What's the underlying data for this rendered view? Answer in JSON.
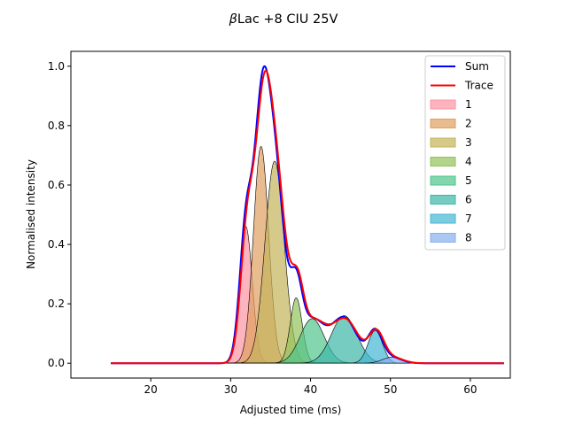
{
  "chart_data": {
    "type": "area",
    "title_prefix": "β",
    "title": "Lac +8 CIU 25V",
    "xlabel": "Adjusted time (ms)",
    "ylabel": "Normalised intensity",
    "xlim": [
      10,
      65
    ],
    "ylim": [
      -0.05,
      1.05
    ],
    "xticks": [
      20,
      30,
      40,
      50,
      60
    ],
    "yticks": [
      0.0,
      0.2,
      0.4,
      0.6,
      0.8,
      1.0
    ],
    "x_range": [
      15,
      64.2
    ],
    "grid": false,
    "legend_position": "top-right",
    "lines": [
      {
        "name": "Sum",
        "color": "#0000ff"
      },
      {
        "name": "Trace",
        "color": "#ff0000"
      }
    ],
    "components": [
      {
        "name": "1",
        "center": 31.9,
        "height": 0.46,
        "sigma": 0.8,
        "color": "#fc94a3"
      },
      {
        "name": "2",
        "center": 33.8,
        "height": 0.73,
        "sigma": 0.95,
        "color": "#e0a05f"
      },
      {
        "name": "3",
        "center": 35.5,
        "height": 0.68,
        "sigma": 1.2,
        "color": "#c4b45a"
      },
      {
        "name": "4",
        "center": 38.2,
        "height": 0.22,
        "sigma": 0.75,
        "color": "#93c25a"
      },
      {
        "name": "5",
        "center": 40.2,
        "height": 0.15,
        "sigma": 1.5,
        "color": "#4fc48c"
      },
      {
        "name": "6",
        "center": 44.2,
        "height": 0.16,
        "sigma": 1.6,
        "color": "#3db7a8"
      },
      {
        "name": "7",
        "center": 48.1,
        "height": 0.11,
        "sigma": 0.9,
        "color": "#45b6d4"
      },
      {
        "name": "8",
        "center": 50.2,
        "height": 0.02,
        "sigma": 1.2,
        "color": "#88aff0"
      }
    ],
    "trace_peak": {
      "x": 34.2,
      "y": 0.985
    },
    "sum_peak": {
      "x": 34.0,
      "y": 1.0
    }
  }
}
